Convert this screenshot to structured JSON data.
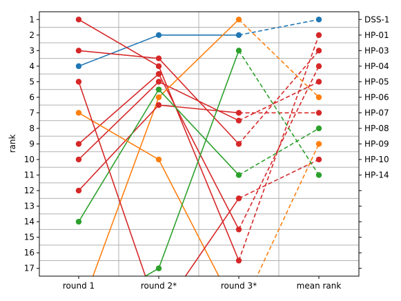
{
  "chart_data": {
    "type": "line",
    "ylabel": "rank",
    "categories": [
      "round 1",
      "round 2*",
      "round 3*",
      "mean rank"
    ],
    "y_ticks": [
      "1",
      "2",
      "3",
      "4",
      "5",
      "6",
      "7",
      "8",
      "9",
      "10",
      "11",
      "12",
      "13",
      "14",
      "15",
      "16",
      "17"
    ],
    "ylim": [
      17.5,
      0.5
    ],
    "y_inverted": true,
    "grid": true,
    "dashed_segment": "round 3* to mean rank",
    "right_labels": [
      "DSS-1",
      "HP-01",
      "HP-03",
      "HP-04",
      "HP-05",
      "HP-06",
      "HP-07",
      "HP-08",
      "HP-09",
      "HP-10",
      "HP-14"
    ],
    "right_label_ranks": [
      1,
      2,
      3,
      4,
      5,
      6,
      7,
      8,
      9,
      10,
      11
    ],
    "series": [
      {
        "color": "#1f77b4",
        "values": [
          4,
          2,
          2,
          1
        ]
      },
      {
        "color": "#d62728",
        "values": [
          1,
          4,
          16.5,
          2
        ]
      },
      {
        "color": "#d62728",
        "values": [
          3,
          3.5,
          9,
          3
        ]
      },
      {
        "color": "#d62728",
        "values": [
          9,
          4.5,
          14.5,
          4
        ]
      },
      {
        "color": "#d62728",
        "values": [
          10,
          5,
          7.5,
          5
        ]
      },
      {
        "color": "#ff7f0e",
        "values": [
          20,
          6,
          1,
          6
        ]
      },
      {
        "color": "#d62728",
        "values": [
          12,
          6.5,
          7,
          7
        ]
      },
      {
        "color": "#2ca02c",
        "values": [
          14,
          5.5,
          11,
          8
        ]
      },
      {
        "color": "#ff7f0e",
        "values": [
          7,
          10,
          20,
          9
        ]
      },
      {
        "color": "#d62728",
        "values": [
          5,
          20,
          12.5,
          10
        ]
      },
      {
        "color": "#2ca02c",
        "values": [
          20,
          17,
          3,
          11
        ]
      }
    ]
  }
}
